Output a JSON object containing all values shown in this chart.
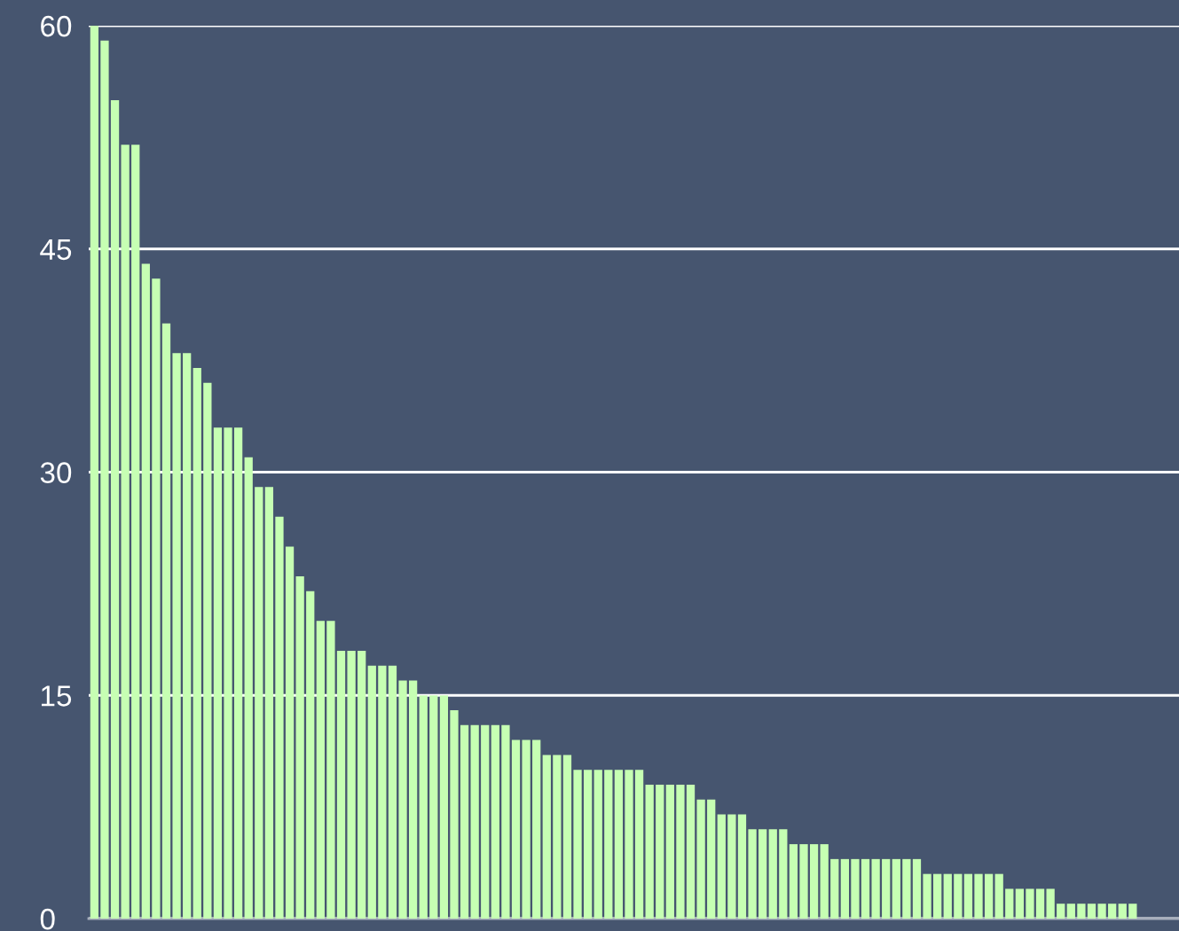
{
  "chart_data": {
    "type": "bar",
    "categories": [
      null,
      null,
      null,
      null,
      null,
      null,
      null,
      null,
      null,
      null,
      null,
      null,
      null,
      null,
      null,
      null,
      null,
      null,
      null,
      null,
      null,
      null,
      null,
      null,
      null,
      null,
      null,
      null,
      null,
      null,
      null,
      null,
      null,
      null,
      null,
      null,
      null,
      null,
      null,
      null,
      null,
      null,
      null,
      null,
      null,
      null,
      null,
      null,
      null,
      null,
      null,
      null,
      null,
      null,
      null,
      null,
      null,
      null,
      null,
      null,
      null,
      null,
      null,
      null,
      null,
      null,
      null,
      null,
      null,
      null,
      null,
      null,
      null,
      null,
      null,
      null,
      null,
      null,
      null,
      null,
      null,
      null,
      null,
      null,
      null,
      null,
      null,
      null,
      null,
      null,
      null,
      null,
      null,
      null,
      null,
      null,
      null,
      null,
      null,
      null,
      null,
      null
    ],
    "values": [
      60,
      59,
      55,
      52,
      52,
      44,
      43,
      40,
      38,
      38,
      37,
      36,
      33,
      33,
      33,
      31,
      29,
      29,
      27,
      25,
      23,
      22,
      20,
      20,
      18,
      18,
      18,
      17,
      17,
      17,
      16,
      16,
      15,
      15,
      15,
      14,
      13,
      13,
      13,
      13,
      13,
      12,
      12,
      12,
      11,
      11,
      11,
      10,
      10,
      10,
      10,
      10,
      10,
      10,
      9,
      9,
      9,
      9,
      9,
      8,
      8,
      7,
      7,
      7,
      6,
      6,
      6,
      6,
      5,
      5,
      5,
      5,
      4,
      4,
      4,
      4,
      4,
      4,
      4,
      4,
      4,
      3,
      3,
      3,
      3,
      3,
      3,
      3,
      3,
      2,
      2,
      2,
      2,
      2,
      1,
      1,
      1,
      1,
      1,
      1,
      1,
      1
    ],
    "color": "#c6ffb3",
    "ylim": [
      0,
      60
    ],
    "yticks": [
      0,
      15,
      30,
      45,
      60
    ],
    "grid": "y"
  }
}
